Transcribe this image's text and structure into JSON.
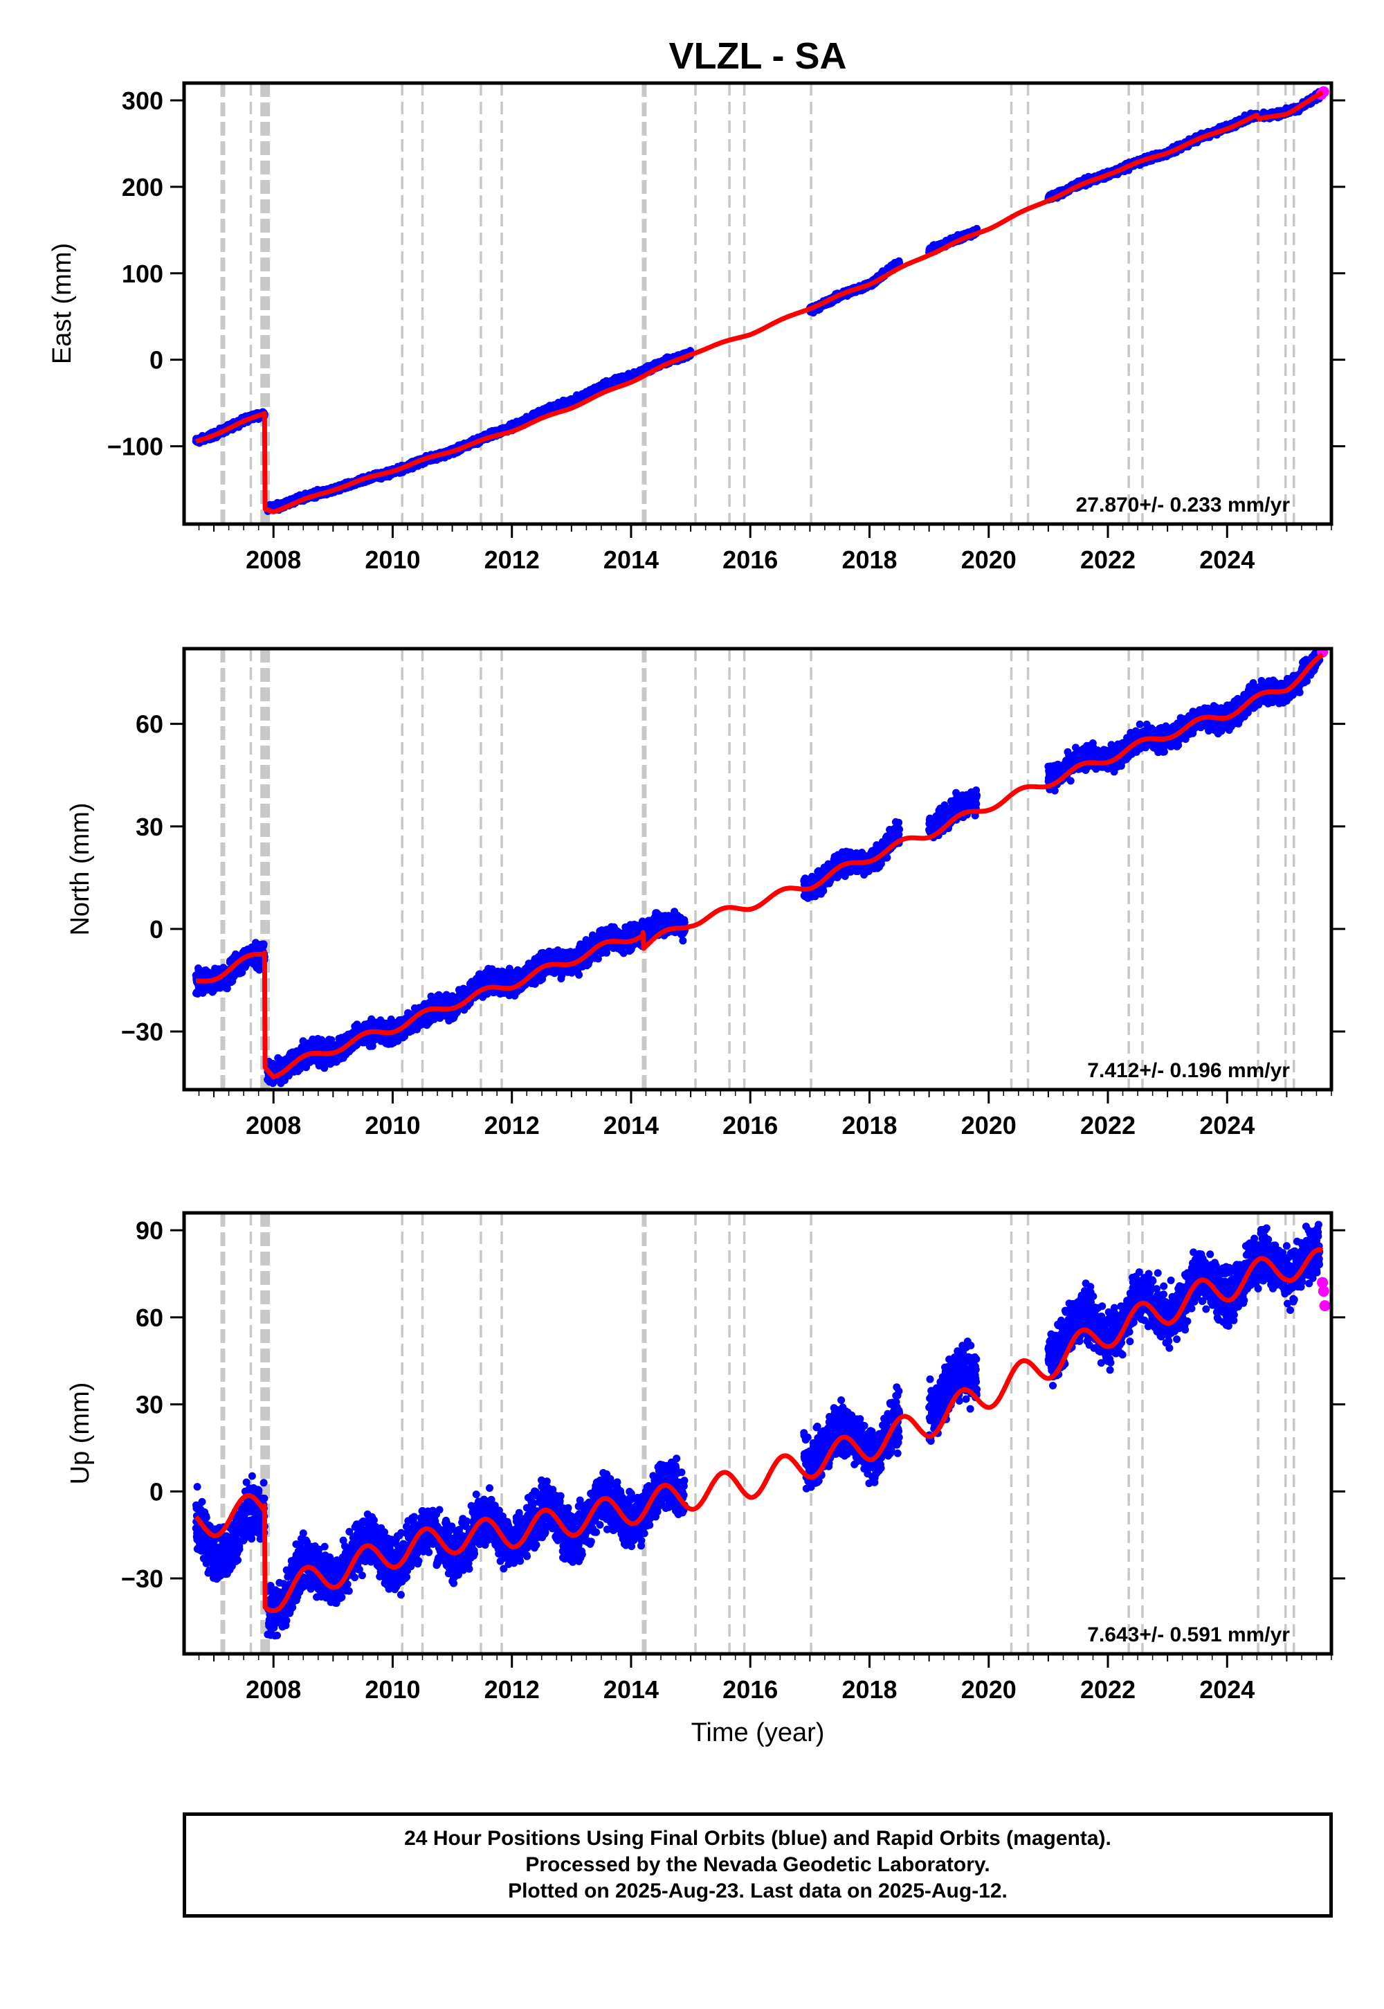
{
  "title": "VLZL - SA",
  "x_axis_label": "Time (year)",
  "caption": {
    "line1": "24 Hour Positions Using Final Orbits (blue) and Rapid Orbits (magenta).",
    "line2": "Processed by the Nevada Geodetic Laboratory.",
    "line3": "Plotted on 2025-Aug-23. Last data on 2025-Aug-12."
  },
  "colors": {
    "final_orbits": "#0000ff",
    "rapid_orbits": "#ff00ff",
    "model_fit": "#ff0000",
    "event_lines": "#c8c8c8"
  },
  "chart_data": [
    {
      "type": "scatter",
      "ylabel": "East (mm)",
      "xlabel": "",
      "xlim": [
        2006.5,
        2025.75
      ],
      "ylim": [
        -190,
        320
      ],
      "x_ticks": [
        2008,
        2010,
        2012,
        2014,
        2016,
        2018,
        2020,
        2022,
        2024
      ],
      "y_ticks": [
        -100,
        0,
        100,
        200,
        300
      ],
      "y_tick_labels": [
        "−100",
        "0",
        "100",
        "200",
        "300"
      ],
      "rate_label": "27.870+/- 0.233 mm/yr",
      "grid": false,
      "series": [
        {
          "name": "final orbits",
          "style": "dots",
          "color": "blue",
          "segments": [
            {
              "x": [
                2006.7,
                2007.2,
                2007.6,
                2007.85
              ],
              "y": [
                -95,
                -80,
                -68,
                -62
              ]
            },
            {
              "x": [
                2007.9,
                2008.5,
                2009.5,
                2010.5,
                2011.5,
                2012.5,
                2013.5,
                2014.5,
                2015.0
              ],
              "y": [
                -172,
                -160,
                -140,
                -118,
                -92,
                -62,
                -32,
                -5,
                8
              ]
            },
            {
              "x": [
                2017.0,
                2018.0,
                2018.5
              ],
              "y": [
                58,
                88,
                112
              ]
            },
            {
              "x": [
                2019.0,
                2019.8
              ],
              "y": [
                127,
                148
              ]
            },
            {
              "x": [
                2021.0,
                2022.0,
                2023.0,
                2024.0,
                2024.5
              ],
              "y": [
                188,
                215,
                240,
                270,
                283
              ]
            },
            {
              "x": [
                2024.6,
                2025.2,
                2025.55
              ],
              "y": [
                280,
                292,
                305
              ]
            }
          ]
        },
        {
          "name": "rapid orbits",
          "style": "dots",
          "color": "magenta",
          "segments": [
            {
              "x": [
                2025.58,
                2025.62
              ],
              "y": [
                307,
                310
              ]
            }
          ]
        },
        {
          "name": "model fit",
          "style": "line",
          "color": "red",
          "x": [
            2006.7,
            2007.85,
            2007.86,
            2008.0,
            2009.0,
            2010.0,
            2011.0,
            2012.0,
            2013.0,
            2014.0,
            2015.0,
            2016.0,
            2017.0,
            2018.0,
            2019.0,
            2020.0,
            2021.0,
            2022.0,
            2023.0,
            2024.0,
            2024.5,
            2024.55,
            2025.0,
            2025.6
          ],
          "y": [
            -95,
            -62,
            -172,
            -175,
            -150,
            -128,
            -105,
            -82,
            -55,
            -25,
            7,
            30,
            60,
            88,
            122,
            152,
            185,
            215,
            240,
            268,
            282,
            278,
            285,
            308
          ]
        }
      ]
    },
    {
      "type": "scatter",
      "ylabel": "North (mm)",
      "xlabel": "",
      "xlim": [
        2006.5,
        2025.75
      ],
      "ylim": [
        -47,
        82
      ],
      "x_ticks": [
        2008,
        2010,
        2012,
        2014,
        2016,
        2018,
        2020,
        2022,
        2024
      ],
      "y_ticks": [
        -30,
        0,
        30,
        60
      ],
      "y_tick_labels": [
        "−30",
        "0",
        "30",
        "60"
      ],
      "rate_label": "7.412+/- 0.196 mm/yr",
      "grid": false,
      "series": [
        {
          "name": "final orbits",
          "style": "dots",
          "color": "blue",
          "segments": [
            {
              "x": [
                2006.7,
                2007.3,
                2007.85
              ],
              "y": [
                -16,
                -12,
                -7
              ]
            },
            {
              "x": [
                2007.9,
                2008.5,
                2009.5,
                2010.5,
                2011.5,
                2012.5,
                2013.5,
                2014.2,
                2014.9
              ],
              "y": [
                -42,
                -38,
                -32,
                -26,
                -17,
                -12,
                -5,
                0,
                1
              ]
            },
            {
              "x": [
                2016.9,
                2018.0,
                2018.5
              ],
              "y": [
                13,
                21,
                27
              ]
            },
            {
              "x": [
                2019.0,
                2019.8
              ],
              "y": [
                31,
                37
              ]
            },
            {
              "x": [
                2021.0,
                2022.0,
                2023.0,
                2024.0,
                2025.0,
                2025.55
              ],
              "y": [
                45,
                51,
                57,
                63,
                71,
                78
              ]
            }
          ]
        },
        {
          "name": "rapid orbits",
          "style": "dots",
          "color": "magenta",
          "segments": [
            {
              "x": [
                2025.6
              ],
              "y": [
                81
              ]
            }
          ]
        },
        {
          "name": "model fit",
          "style": "line",
          "color": "red",
          "x": [
            2006.7,
            2007.85,
            2007.86,
            2008.0,
            2009.0,
            2010.0,
            2011.0,
            2012.0,
            2013.0,
            2014.2,
            2014.21,
            2015.0,
            2016.0,
            2017.0,
            2018.0,
            2019.0,
            2020.0,
            2021.0,
            2022.0,
            2023.0,
            2024.0,
            2025.0,
            2025.6
          ],
          "y": [
            -16,
            -7,
            -40,
            -42,
            -35,
            -29,
            -22,
            -16,
            -9,
            -1,
            -5,
            2,
            7,
            13,
            21,
            28,
            36,
            43,
            50,
            57,
            63,
            71,
            79
          ]
        }
      ]
    },
    {
      "type": "scatter",
      "ylabel": "Up (mm)",
      "xlabel": "Time (year)",
      "xlim": [
        2006.5,
        2025.75
      ],
      "ylim": [
        -56,
        96
      ],
      "x_ticks": [
        2008,
        2010,
        2012,
        2014,
        2016,
        2018,
        2020,
        2022,
        2024
      ],
      "y_ticks": [
        -30,
        0,
        30,
        60,
        90
      ],
      "y_tick_labels": [
        "−30",
        "0",
        "30",
        "60",
        "90"
      ],
      "rate_label": "7.643+/- 0.591 mm/yr",
      "grid": false,
      "series": [
        {
          "name": "final orbits",
          "style": "dots",
          "color": "blue",
          "segments": [
            {
              "x": [
                2006.7,
                2007.3,
                2007.85
              ],
              "y": [
                -12,
                -20,
                -5
              ]
            },
            {
              "x": [
                2007.9,
                2008.5,
                2009.5,
                2010.5,
                2011.5,
                2012.5,
                2013.5,
                2014.2,
                2014.9
              ],
              "y": [
                -38,
                -30,
                -22,
                -18,
                -15,
                -12,
                -8,
                -5,
                0
              ]
            },
            {
              "x": [
                2016.9,
                2018.0,
                2018.5
              ],
              "y": [
                15,
                18,
                20
              ]
            },
            {
              "x": [
                2019.0,
                2019.8
              ],
              "y": [
                32,
                38
              ]
            },
            {
              "x": [
                2021.0,
                2022.0,
                2023.0,
                2024.0,
                2025.0,
                2025.55
              ],
              "y": [
                52,
                58,
                65,
                72,
                80,
                78
              ]
            }
          ]
        },
        {
          "name": "rapid orbits",
          "style": "dots",
          "color": "magenta",
          "segments": [
            {
              "x": [
                2025.6,
                2025.62,
                2025.64
              ],
              "y": [
                72,
                69,
                64
              ]
            }
          ]
        },
        {
          "name": "model fit",
          "style": "line",
          "color": "red",
          "seasonal": true,
          "x": [
            2006.7,
            2007.85,
            2007.86,
            2008.0,
            2009.0,
            2010.0,
            2011.0,
            2012.0,
            2013.0,
            2014.0,
            2015.0,
            2016.0,
            2017.0,
            2018.0,
            2019.0,
            2020.0,
            2021.0,
            2022.0,
            2023.0,
            2024.0,
            2025.0,
            2025.6
          ],
          "y": [
            -12,
            -5,
            -38,
            -36,
            -28,
            -21,
            -16,
            -14,
            -10,
            -6,
            -1,
            3,
            10,
            16,
            24,
            34,
            44,
            55,
            63,
            71,
            78,
            78
          ]
        }
      ]
    }
  ],
  "event_lines": {
    "major": [
      2007.15,
      2007.82,
      2007.9,
      2014.22
    ],
    "minor": [
      2007.62,
      2010.16,
      2010.5,
      2011.48,
      2011.83,
      2015.08,
      2015.65,
      2015.9,
      2017.02,
      2020.38,
      2020.66,
      2022.35,
      2022.58,
      2024.52,
      2024.98,
      2025.12
    ]
  }
}
